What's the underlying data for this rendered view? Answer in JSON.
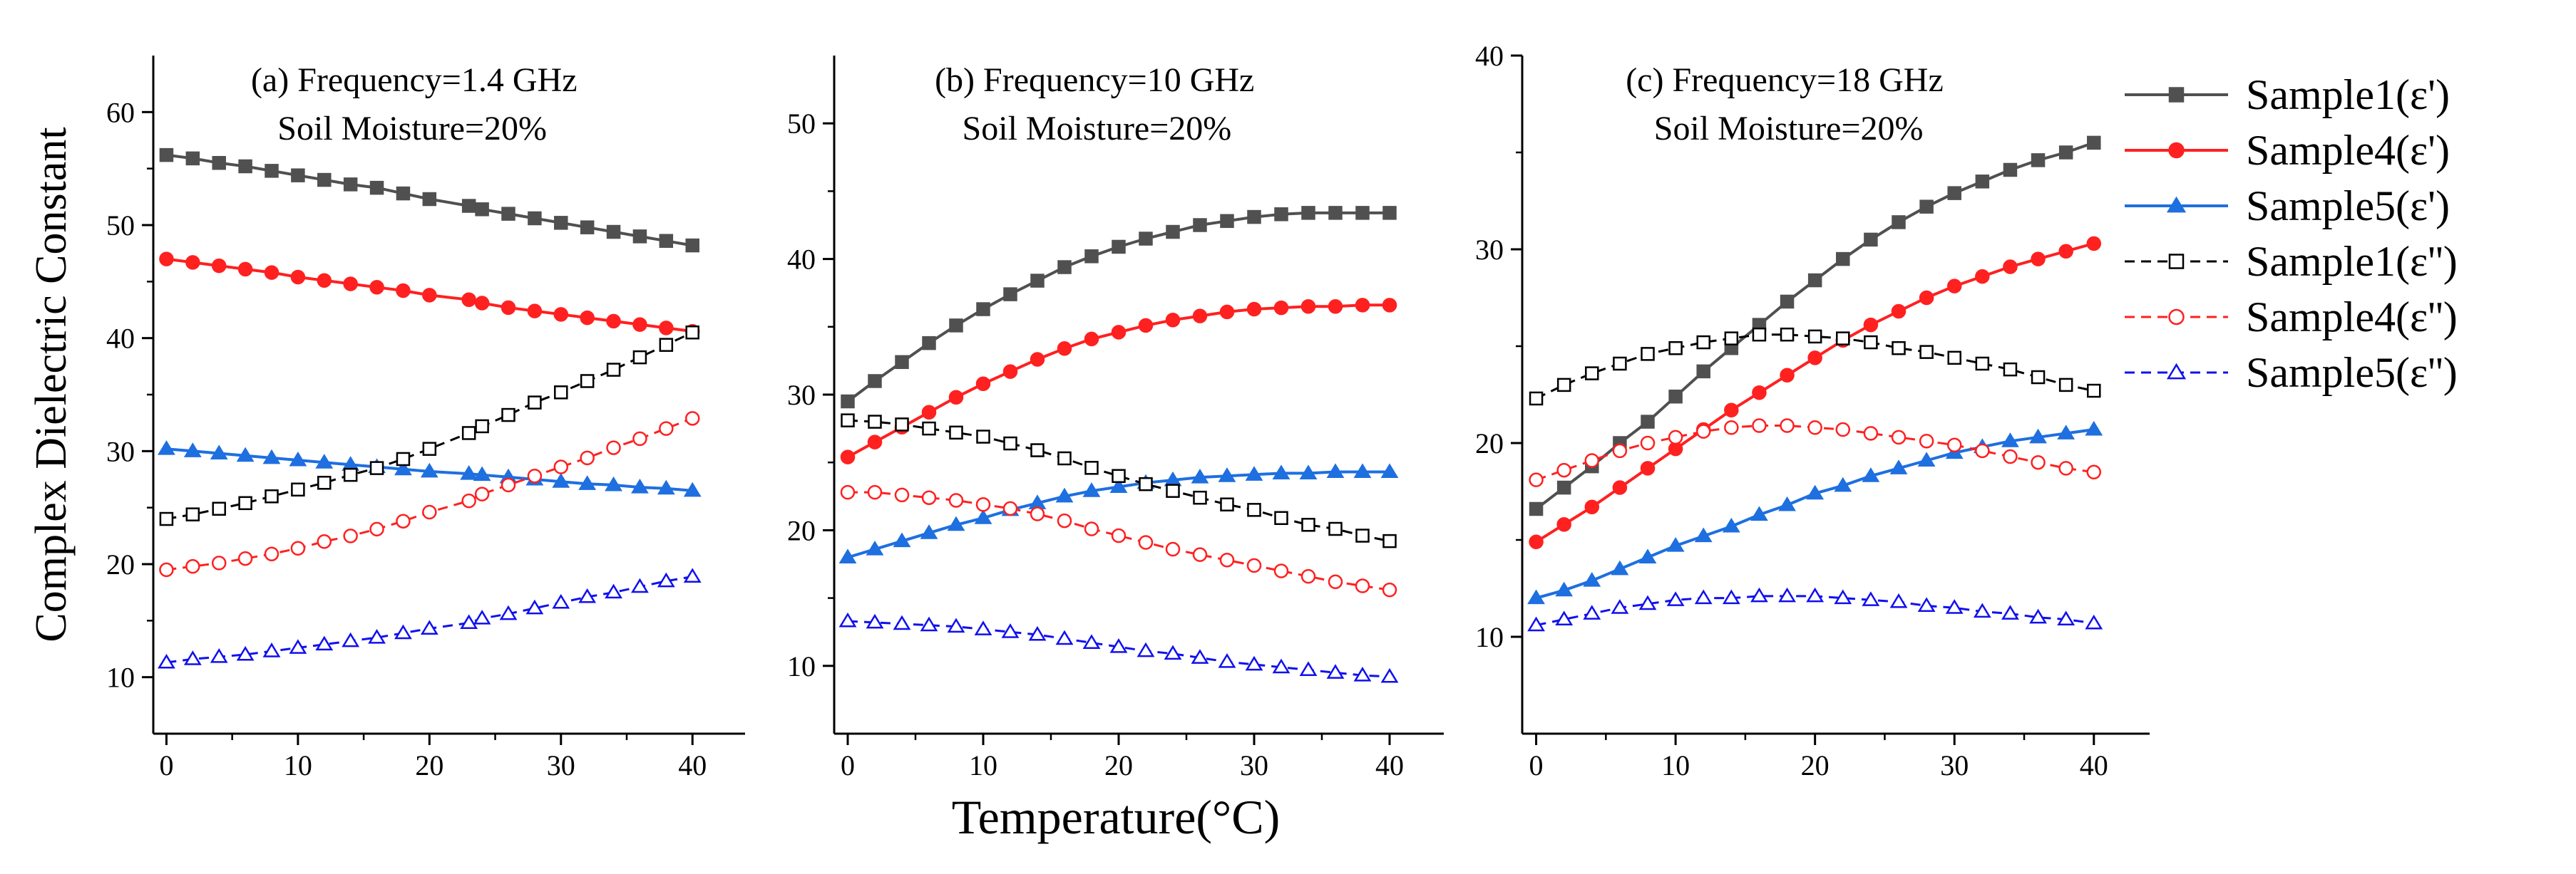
{
  "chart_data": {
    "type": "line",
    "ylabel": "Complex Dielectric Constant",
    "xlabel": "Temperature(°C)",
    "legend_position": "right",
    "legend": [
      {
        "key": "s1r",
        "label": "Sample1(ε')",
        "color": "#505050",
        "marker": "square",
        "filled": true,
        "dash": "solid"
      },
      {
        "key": "s4r",
        "label": "Sample4(ε')",
        "color": "#ff2020",
        "marker": "circle",
        "filled": true,
        "dash": "solid"
      },
      {
        "key": "s5r",
        "label": "Sample5(ε')",
        "color": "#1e6fe0",
        "marker": "triangle",
        "filled": true,
        "dash": "solid"
      },
      {
        "key": "s1i",
        "label": "Sample1(ε'')",
        "color": "#000000",
        "marker": "square",
        "filled": false,
        "dash": "dashed"
      },
      {
        "key": "s4i",
        "label": "Sample4(ε'')",
        "color": "#ff2020",
        "marker": "circle",
        "filled": false,
        "dash": "dashed"
      },
      {
        "key": "s5i",
        "label": "Sample5(ε'')",
        "color": "#1010ee",
        "marker": "triangle",
        "filled": false,
        "dash": "dashed"
      }
    ],
    "panels": [
      {
        "id": "a",
        "title_line1": "(a) Frequency=1.4 GHz",
        "title_line2": "Soil Moisture=20%",
        "xlim": [
          -1,
          44
        ],
        "ylim": [
          5,
          65
        ],
        "xticks": [
          0,
          10,
          20,
          30,
          40
        ],
        "yticks": [
          10,
          20,
          30,
          40,
          50,
          60
        ],
        "series": [
          {
            "key": "s1r",
            "x": [
              0,
              2,
              4,
              6,
              8,
              10,
              12,
              14,
              16,
              18,
              20,
              23,
              24,
              26,
              28,
              30,
              32,
              34,
              36,
              38,
              40
            ],
            "y": [
              56.2,
              55.9,
              55.5,
              55.2,
              54.8,
              54.4,
              54.0,
              53.6,
              53.3,
              52.8,
              52.3,
              51.7,
              51.4,
              51.0,
              50.6,
              50.2,
              49.8,
              49.4,
              49.0,
              48.6,
              48.2
            ]
          },
          {
            "key": "s4r",
            "x": [
              0,
              2,
              4,
              6,
              8,
              10,
              12,
              14,
              16,
              18,
              20,
              23,
              24,
              26,
              28,
              30,
              32,
              34,
              36,
              38,
              40
            ],
            "y": [
              47.0,
              46.7,
              46.4,
              46.1,
              45.8,
              45.4,
              45.1,
              44.8,
              44.5,
              44.2,
              43.8,
              43.4,
              43.1,
              42.7,
              42.4,
              42.1,
              41.8,
              41.5,
              41.2,
              40.9,
              40.6
            ]
          },
          {
            "key": "s5r",
            "x": [
              0,
              2,
              4,
              6,
              8,
              10,
              12,
              14,
              16,
              18,
              20,
              23,
              24,
              26,
              28,
              30,
              32,
              34,
              36,
              38,
              40
            ],
            "y": [
              30.2,
              30.0,
              29.8,
              29.6,
              29.4,
              29.2,
              29.0,
              28.8,
              28.6,
              28.4,
              28.2,
              28.0,
              27.9,
              27.7,
              27.5,
              27.3,
              27.1,
              27.0,
              26.8,
              26.7,
              26.5
            ]
          },
          {
            "key": "s1i",
            "x": [
              0,
              2,
              4,
              6,
              8,
              10,
              12,
              14,
              16,
              18,
              20,
              23,
              24,
              26,
              28,
              30,
              32,
              34,
              36,
              38,
              40
            ],
            "y": [
              24.0,
              24.4,
              24.9,
              25.4,
              26.0,
              26.6,
              27.2,
              27.9,
              28.5,
              29.3,
              30.2,
              31.6,
              32.2,
              33.2,
              34.3,
              35.2,
              36.2,
              37.2,
              38.3,
              39.4,
              40.5
            ]
          },
          {
            "key": "s4i",
            "x": [
              0,
              2,
              4,
              6,
              8,
              10,
              12,
              14,
              16,
              18,
              20,
              23,
              24,
              26,
              28,
              30,
              32,
              34,
              36,
              38,
              40
            ],
            "y": [
              19.5,
              19.8,
              20.1,
              20.5,
              20.9,
              21.4,
              22.0,
              22.5,
              23.1,
              23.8,
              24.6,
              25.6,
              26.2,
              27.0,
              27.8,
              28.6,
              29.4,
              30.3,
              31.1,
              32.0,
              32.9
            ]
          },
          {
            "key": "s5i",
            "x": [
              0,
              2,
              4,
              6,
              8,
              10,
              12,
              14,
              16,
              18,
              20,
              23,
              24,
              26,
              28,
              30,
              32,
              34,
              36,
              38,
              40
            ],
            "y": [
              11.3,
              11.6,
              11.8,
              12.0,
              12.3,
              12.6,
              12.9,
              13.2,
              13.5,
              13.9,
              14.3,
              14.8,
              15.2,
              15.6,
              16.1,
              16.6,
              17.1,
              17.5,
              18.0,
              18.5,
              18.9
            ]
          }
        ]
      },
      {
        "id": "b",
        "title_line1": "(b) Frequency=10 GHz",
        "title_line2": "Soil Moisture=20%",
        "xlim": [
          -1,
          44
        ],
        "ylim": [
          5,
          55
        ],
        "xticks": [
          0,
          10,
          20,
          30,
          40
        ],
        "yticks": [
          10,
          20,
          30,
          40,
          50
        ],
        "series": [
          {
            "key": "s1r",
            "x": [
              0,
              2,
              4,
              6,
              8,
              10,
              12,
              14,
              16,
              18,
              20,
              22,
              24,
              26,
              28,
              30,
              32,
              34,
              36,
              38,
              40
            ],
            "y": [
              29.5,
              31.0,
              32.4,
              33.8,
              35.1,
              36.3,
              37.4,
              38.4,
              39.4,
              40.2,
              40.9,
              41.5,
              42.0,
              42.5,
              42.8,
              43.1,
              43.3,
              43.4,
              43.4,
              43.4,
              43.4
            ]
          },
          {
            "key": "s4r",
            "x": [
              0,
              2,
              4,
              6,
              8,
              10,
              12,
              14,
              16,
              18,
              20,
              22,
              24,
              26,
              28,
              30,
              32,
              34,
              36,
              38,
              40
            ],
            "y": [
              25.4,
              26.5,
              27.6,
              28.7,
              29.8,
              30.8,
              31.7,
              32.6,
              33.4,
              34.1,
              34.6,
              35.1,
              35.5,
              35.8,
              36.1,
              36.3,
              36.4,
              36.5,
              36.5,
              36.6,
              36.6
            ]
          },
          {
            "key": "s5r",
            "x": [
              0,
              2,
              4,
              6,
              8,
              10,
              12,
              14,
              16,
              18,
              20,
              22,
              24,
              26,
              28,
              30,
              32,
              34,
              36,
              38,
              40
            ],
            "y": [
              18.0,
              18.6,
              19.2,
              19.8,
              20.4,
              20.9,
              21.5,
              22.0,
              22.5,
              22.9,
              23.2,
              23.5,
              23.7,
              23.9,
              24.0,
              24.1,
              24.2,
              24.2,
              24.3,
              24.3,
              24.3
            ]
          },
          {
            "key": "s1i",
            "x": [
              0,
              2,
              4,
              6,
              8,
              10,
              12,
              14,
              16,
              18,
              20,
              22,
              24,
              26,
              28,
              30,
              32,
              34,
              36,
              38,
              40
            ],
            "y": [
              28.1,
              28.0,
              27.8,
              27.5,
              27.2,
              26.9,
              26.4,
              25.9,
              25.3,
              24.6,
              24.0,
              23.4,
              22.9,
              22.4,
              21.9,
              21.5,
              20.9,
              20.4,
              20.1,
              19.6,
              19.2
            ]
          },
          {
            "key": "s4i",
            "x": [
              0,
              2,
              4,
              6,
              8,
              10,
              12,
              14,
              16,
              18,
              20,
              22,
              24,
              26,
              28,
              30,
              32,
              34,
              36,
              38,
              40
            ],
            "y": [
              22.8,
              22.8,
              22.6,
              22.4,
              22.2,
              21.9,
              21.6,
              21.2,
              20.7,
              20.1,
              19.6,
              19.1,
              18.6,
              18.2,
              17.8,
              17.4,
              17.0,
              16.6,
              16.2,
              15.9,
              15.6
            ]
          },
          {
            "key": "s5i",
            "x": [
              0,
              2,
              4,
              6,
              8,
              10,
              12,
              14,
              16,
              18,
              20,
              22,
              24,
              26,
              28,
              30,
              32,
              34,
              36,
              38,
              40
            ],
            "y": [
              13.3,
              13.2,
              13.1,
              13.0,
              12.9,
              12.7,
              12.5,
              12.3,
              12.0,
              11.7,
              11.4,
              11.1,
              10.9,
              10.6,
              10.3,
              10.1,
              9.9,
              9.7,
              9.5,
              9.3,
              9.2
            ]
          }
        ]
      },
      {
        "id": "c",
        "title_line1": "(c) Frequency=18 GHz",
        "title_line2": "Soil Moisture=20%",
        "xlim": [
          -1,
          44
        ],
        "ylim": [
          5,
          40
        ],
        "xticks": [
          0,
          10,
          20,
          30,
          40
        ],
        "yticks": [
          10,
          20,
          30,
          40
        ],
        "series": [
          {
            "key": "s1r",
            "x": [
              0,
              2,
              4,
              6,
              8,
              10,
              12,
              14,
              16,
              18,
              20,
              22,
              24,
              26,
              28,
              30,
              32,
              34,
              36,
              38,
              40
            ],
            "y": [
              16.6,
              17.7,
              18.8,
              20.0,
              21.1,
              22.4,
              23.7,
              24.9,
              26.1,
              27.3,
              28.4,
              29.5,
              30.5,
              31.4,
              32.2,
              32.9,
              33.5,
              34.1,
              34.6,
              35.0,
              35.5
            ]
          },
          {
            "key": "s4r",
            "x": [
              0,
              2,
              4,
              6,
              8,
              10,
              12,
              14,
              16,
              18,
              20,
              22,
              24,
              26,
              28,
              30,
              32,
              34,
              36,
              38,
              40
            ],
            "y": [
              14.9,
              15.8,
              16.7,
              17.7,
              18.7,
              19.7,
              20.7,
              21.7,
              22.6,
              23.5,
              24.4,
              25.3,
              26.1,
              26.8,
              27.5,
              28.1,
              28.6,
              29.1,
              29.5,
              29.9,
              30.3
            ]
          },
          {
            "key": "s5r",
            "x": [
              0,
              2,
              4,
              6,
              8,
              10,
              12,
              14,
              16,
              18,
              20,
              22,
              24,
              26,
              28,
              30,
              32,
              34,
              36,
              38,
              40
            ],
            "y": [
              12.0,
              12.4,
              12.9,
              13.5,
              14.1,
              14.7,
              15.2,
              15.7,
              16.3,
              16.8,
              17.4,
              17.8,
              18.3,
              18.7,
              19.1,
              19.5,
              19.8,
              20.1,
              20.3,
              20.5,
              20.7
            ]
          },
          {
            "key": "s1i",
            "x": [
              0,
              2,
              4,
              6,
              8,
              10,
              12,
              14,
              16,
              18,
              20,
              22,
              24,
              26,
              28,
              30,
              32,
              34,
              36,
              38,
              40
            ],
            "y": [
              22.3,
              23.0,
              23.6,
              24.1,
              24.6,
              24.9,
              25.2,
              25.4,
              25.6,
              25.6,
              25.5,
              25.4,
              25.2,
              24.9,
              24.7,
              24.4,
              24.1,
              23.8,
              23.4,
              23.0,
              22.7
            ]
          },
          {
            "key": "s4i",
            "x": [
              0,
              2,
              4,
              6,
              8,
              10,
              12,
              14,
              16,
              18,
              20,
              22,
              24,
              26,
              28,
              30,
              32,
              34,
              36,
              38,
              40
            ],
            "y": [
              18.1,
              18.6,
              19.1,
              19.6,
              20.0,
              20.3,
              20.6,
              20.8,
              20.9,
              20.9,
              20.8,
              20.7,
              20.5,
              20.3,
              20.1,
              19.9,
              19.6,
              19.3,
              19.0,
              18.7,
              18.5
            ]
          },
          {
            "key": "s5i",
            "x": [
              0,
              2,
              4,
              6,
              8,
              10,
              12,
              14,
              16,
              18,
              20,
              22,
              24,
              26,
              28,
              30,
              32,
              34,
              36,
              38,
              40
            ],
            "y": [
              10.6,
              10.9,
              11.2,
              11.5,
              11.7,
              11.9,
              12.0,
              12.0,
              12.1,
              12.1,
              12.1,
              12.0,
              11.9,
              11.8,
              11.6,
              11.5,
              11.3,
              11.2,
              11.0,
              10.9,
              10.7
            ]
          }
        ]
      }
    ]
  }
}
